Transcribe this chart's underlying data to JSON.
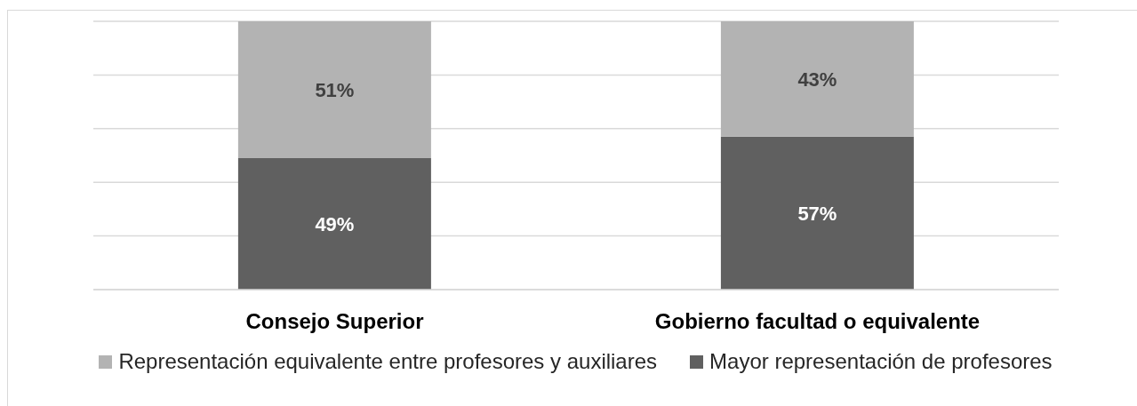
{
  "chart_data": {
    "type": "bar",
    "stacked": true,
    "categories": [
      "Consejo Superior",
      "Gobierno facultad o equivalente"
    ],
    "series": [
      {
        "name": "Mayor representación de profesores",
        "color": "#606060",
        "values": [
          49,
          57
        ],
        "value_labels": [
          "49%",
          "57%"
        ]
      },
      {
        "name": "Representación equivalente entre profesores y auxiliares",
        "color": "#b3b3b3",
        "values": [
          51,
          43
        ],
        "value_labels": [
          "51%",
          "43%"
        ]
      }
    ],
    "grid": "y",
    "tick_labels": "x",
    "legend": "bottom"
  }
}
